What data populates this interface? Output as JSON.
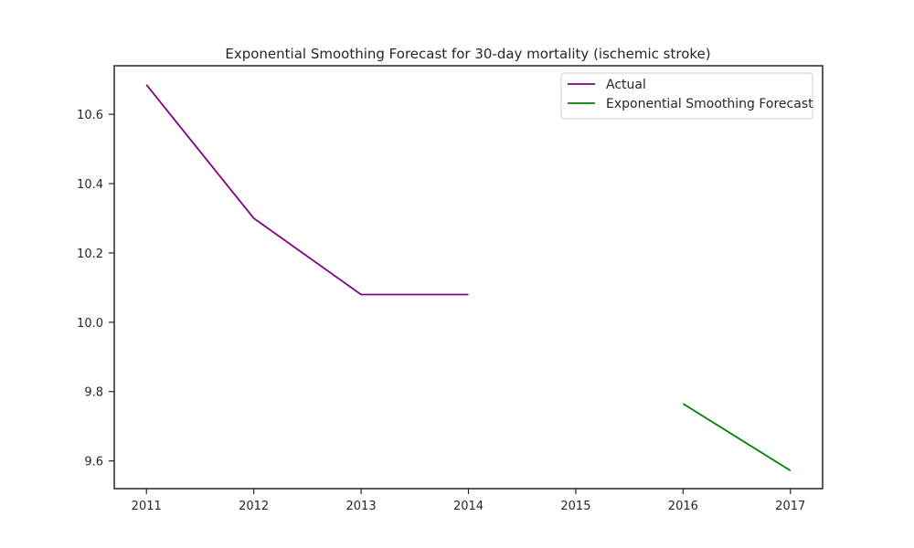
{
  "chart_data": {
    "type": "line",
    "title": "Exponential Smoothing Forecast for 30-day mortality (ischemic stroke)",
    "xlabel": "",
    "ylabel": "",
    "xlim": [
      2010.7,
      2017.3
    ],
    "ylim": [
      9.52,
      10.74
    ],
    "x_ticks": [
      "2011",
      "2012",
      "2013",
      "2014",
      "2015",
      "2016",
      "2017"
    ],
    "y_ticks": [
      "9.6",
      "9.8",
      "10.0",
      "10.2",
      "10.4",
      "10.6"
    ],
    "grid": false,
    "legend_position": "top-right",
    "series": [
      {
        "name": "Actual",
        "color": "#800080",
        "points": [
          {
            "x": 2011,
            "y": 10.685
          },
          {
            "x": 2012,
            "y": 10.3
          },
          {
            "x": 2013,
            "y": 10.08
          },
          {
            "x": 2014,
            "y": 10.08
          }
        ]
      },
      {
        "name": "Exponential Smoothing Forecast",
        "color": "#008000",
        "points": [
          {
            "x": 2016,
            "y": 9.765
          },
          {
            "x": 2017,
            "y": 9.572
          }
        ]
      }
    ]
  }
}
